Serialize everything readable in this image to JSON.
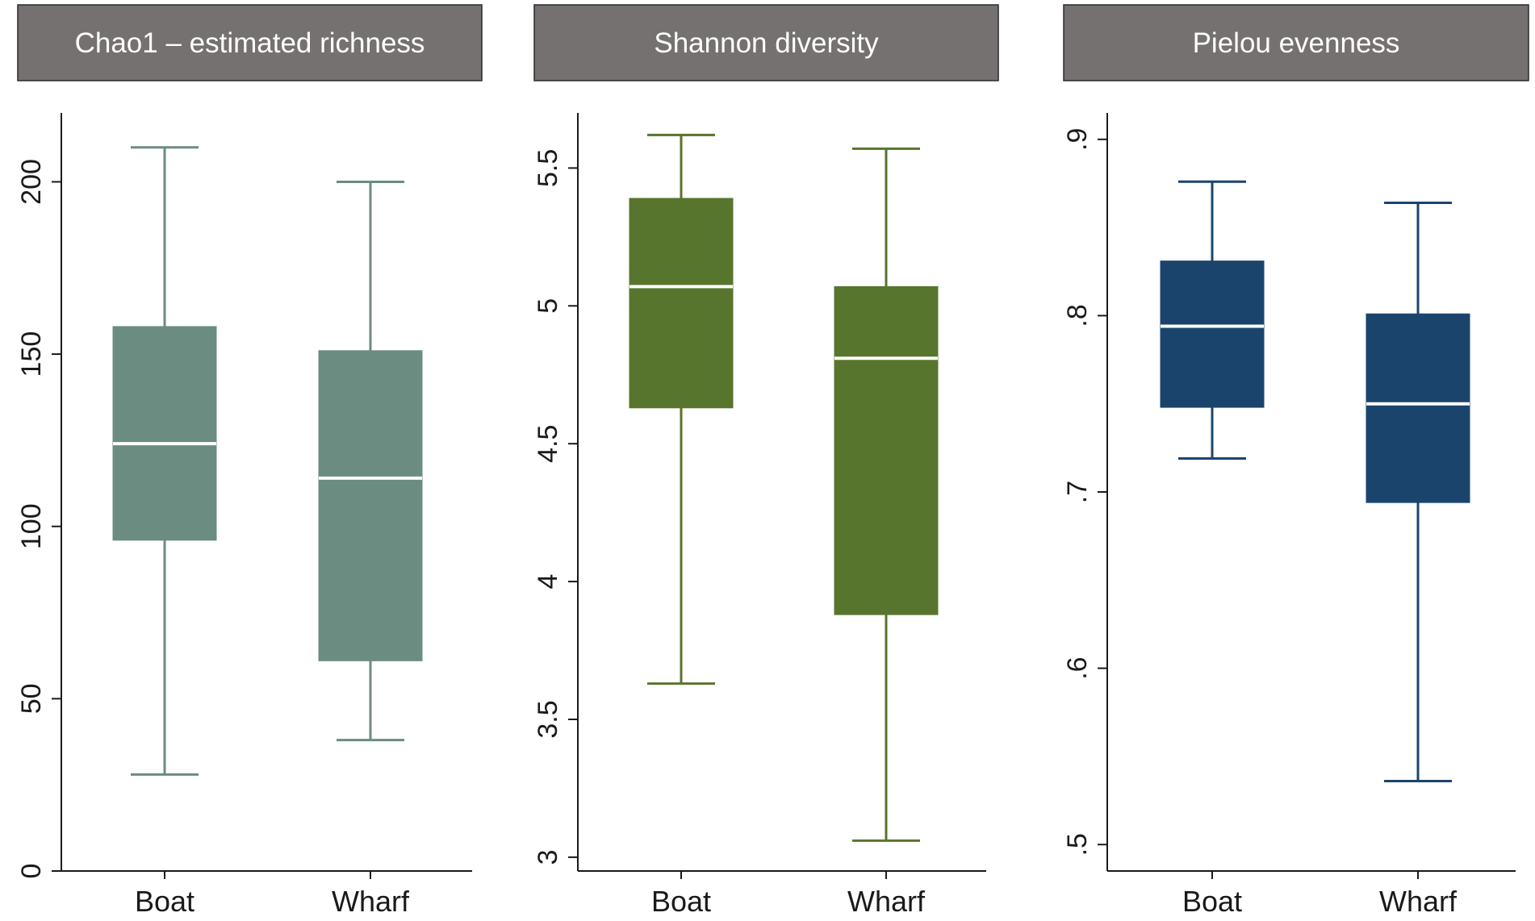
{
  "chart_data": [
    {
      "type": "box",
      "title": "Chao1 – estimated richness",
      "xlabel": "",
      "ylabel": "",
      "categories": [
        "Boat",
        "Wharf"
      ],
      "ylim": [
        0,
        220
      ],
      "yticks": [
        {
          "value": 0,
          "label": "0"
        },
        {
          "value": 50,
          "label": "50"
        },
        {
          "value": 100,
          "label": "100"
        },
        {
          "value": 150,
          "label": "150"
        },
        {
          "value": 200,
          "label": "200"
        }
      ],
      "color": "#6b8c80",
      "boxes": [
        {
          "category": "Boat",
          "whisker_low": 28,
          "q1": 96,
          "median": 124,
          "q3": 158,
          "whisker_high": 210
        },
        {
          "category": "Wharf",
          "whisker_low": 38,
          "q1": 61,
          "median": 114,
          "q3": 151,
          "whisker_high": 200
        }
      ]
    },
    {
      "type": "box",
      "title": "Shannon diversity",
      "xlabel": "",
      "ylabel": "",
      "categories": [
        "Boat",
        "Wharf"
      ],
      "ylim": [
        2.95,
        5.7
      ],
      "yticks": [
        {
          "value": 3,
          "label": "3"
        },
        {
          "value": 3.5,
          "label": "3.5"
        },
        {
          "value": 4,
          "label": "4"
        },
        {
          "value": 4.5,
          "label": "4.5"
        },
        {
          "value": 5,
          "label": "5"
        },
        {
          "value": 5.5,
          "label": "5.5"
        }
      ],
      "color": "#58752e",
      "boxes": [
        {
          "category": "Boat",
          "whisker_low": 3.63,
          "q1": 4.63,
          "median": 5.07,
          "q3": 5.39,
          "whisker_high": 5.62
        },
        {
          "category": "Wharf",
          "whisker_low": 3.06,
          "q1": 3.88,
          "median": 4.81,
          "q3": 5.07,
          "whisker_high": 5.57
        }
      ]
    },
    {
      "type": "box",
      "title": "Pielou evenness",
      "xlabel": "",
      "ylabel": "",
      "categories": [
        "Boat",
        "Wharf"
      ],
      "ylim": [
        0.485,
        0.915
      ],
      "yticks": [
        {
          "value": 0.5,
          "label": ".5"
        },
        {
          "value": 0.6,
          "label": ".6"
        },
        {
          "value": 0.7,
          "label": ".7"
        },
        {
          "value": 0.8,
          "label": ".8"
        },
        {
          "value": 0.9,
          "label": ".9"
        }
      ],
      "color": "#1b446d",
      "boxes": [
        {
          "category": "Boat",
          "whisker_low": 0.719,
          "q1": 0.748,
          "median": 0.794,
          "q3": 0.831,
          "whisker_high": 0.876
        },
        {
          "category": "Wharf",
          "whisker_low": 0.536,
          "q1": 0.694,
          "median": 0.75,
          "q3": 0.801,
          "whisker_high": 0.864
        }
      ]
    }
  ],
  "colors": {
    "header_fill": "#757170",
    "header_text": "#ffffff",
    "axis": "#1a1a1a",
    "median_line": "#ffffff"
  }
}
